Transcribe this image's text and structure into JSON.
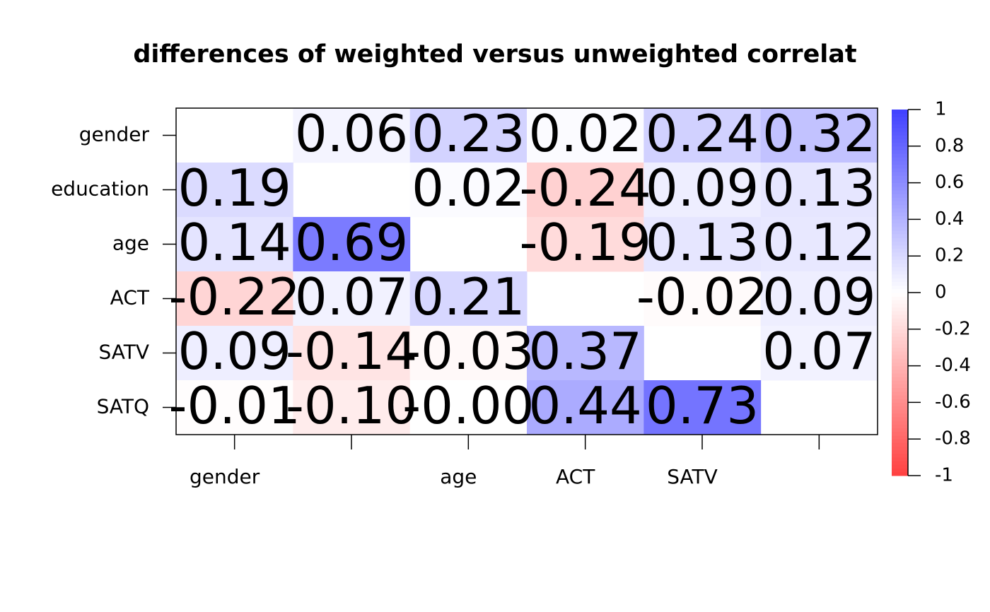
{
  "chart_data": {
    "type": "heatmap",
    "title": "differences of weighted versus unweighted correlat",
    "x_categories": [
      "gender",
      null,
      "age",
      "ACT",
      "SATV",
      null
    ],
    "y_categories": [
      "gender",
      "education",
      "age",
      "ACT",
      "SATV",
      "SATQ"
    ],
    "values": [
      [
        null,
        0.06,
        0.23,
        0.02,
        0.24,
        0.32
      ],
      [
        0.19,
        null,
        0.02,
        -0.24,
        0.09,
        0.13
      ],
      [
        0.14,
        0.69,
        null,
        -0.19,
        0.13,
        0.12
      ],
      [
        -0.22,
        0.07,
        0.21,
        null,
        -0.02,
        0.09
      ],
      [
        0.09,
        -0.14,
        -0.03,
        0.37,
        null,
        0.07
      ],
      [
        -0.01,
        -0.1,
        0,
        0.44,
        0.73,
        null
      ]
    ],
    "value_labels": [
      [
        null,
        "0.06",
        "0.23",
        "0.02",
        "0.24",
        "0.32"
      ],
      [
        "0.19",
        null,
        "0.02",
        "-0.24",
        "0.09",
        "0.13"
      ],
      [
        "0.14",
        "0.69",
        null,
        "-0.19",
        "0.13",
        "0.12"
      ],
      [
        "-0.22",
        "0.07",
        "0.21",
        null,
        "-0.02",
        "0.09"
      ],
      [
        "0.09",
        "-0.14",
        "-0.03",
        "0.37",
        null,
        "0.07"
      ],
      [
        "-0.01",
        "-0.10",
        "-0.00",
        "0.44",
        "0.73",
        null
      ]
    ],
    "colors": [
      "#ff4040",
      "#ffffff",
      "#4040ff"
    ],
    "zlim": [
      -1,
      1
    ],
    "zticks": [
      -1,
      -0.8,
      -0.6,
      -0.4,
      -0.2,
      0,
      0.2,
      0.4,
      0.6,
      0.8,
      1
    ]
  }
}
